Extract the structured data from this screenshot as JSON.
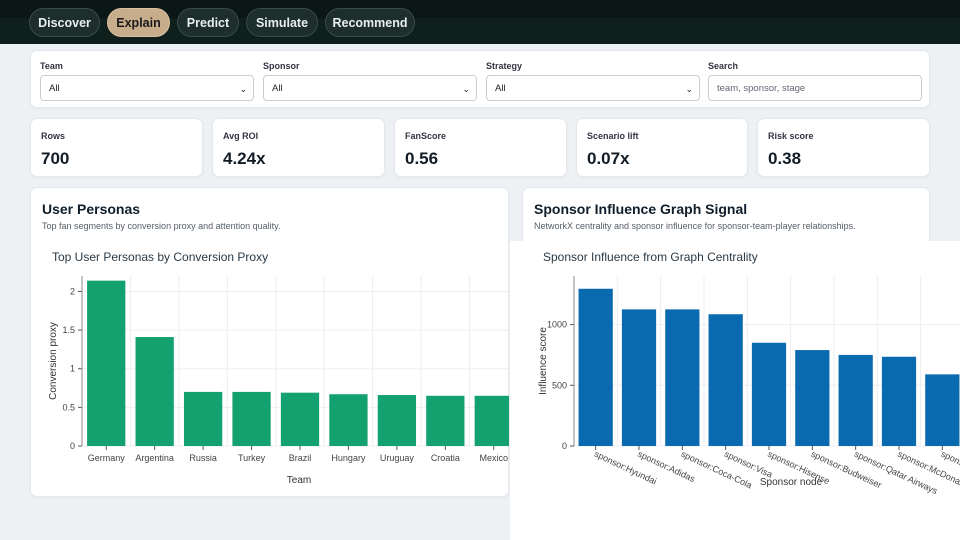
{
  "tabs": [
    "Discover",
    "Explain",
    "Predict",
    "Simulate",
    "Recommend"
  ],
  "active_tab": "Explain",
  "filters": {
    "team": {
      "label": "Team",
      "value": "All"
    },
    "sponsor": {
      "label": "Sponsor",
      "value": "All"
    },
    "strategy": {
      "label": "Strategy",
      "value": "All"
    },
    "search": {
      "label": "Search",
      "placeholder": "team, sponsor, stage"
    }
  },
  "kpis": [
    {
      "label": "Rows",
      "value": "700"
    },
    {
      "label": "Avg ROI",
      "value": "4.24x"
    },
    {
      "label": "FanScore",
      "value": "0.56"
    },
    {
      "label": "Scenario lift",
      "value": "0.07x"
    },
    {
      "label": "Risk score",
      "value": "0.38"
    }
  ],
  "panels": {
    "personas": {
      "title": "User Personas",
      "subtitle": "Top fan segments by conversion proxy and attention quality."
    },
    "influence": {
      "title": "Sponsor Influence Graph Signal",
      "subtitle": "NetworkX centrality and sponsor influence for sponsor-team-player relationships."
    }
  },
  "chart_data": [
    {
      "type": "bar",
      "title": "Top User Personas by Conversion Proxy",
      "xlabel": "Team",
      "ylabel": "Conversion proxy",
      "categories": [
        "Germany",
        "Argentina",
        "Russia",
        "Turkey",
        "Brazil",
        "Hungary",
        "Uruguay",
        "Croatia",
        "Mexico"
      ],
      "values": [
        2.14,
        1.41,
        0.7,
        0.7,
        0.69,
        0.67,
        0.66,
        0.65,
        0.65
      ],
      "ylim": [
        0,
        2.2
      ],
      "yticks": [
        "0",
        "0.5",
        "1",
        "1.5",
        "2"
      ],
      "color": "#13a26f",
      "grid": true
    },
    {
      "type": "bar",
      "title": "Sponsor Influence from Graph Centrality",
      "xlabel": "Sponsor node",
      "ylabel": "Influence score",
      "categories": [
        "sponsor:Hyundai",
        "sponsor:Adidas",
        "sponsor:Coca-Cola",
        "sponsor:Visa",
        "sponsor:Hisense",
        "sponsor:Budweiser",
        "sponsor:Qatar Airways",
        "sponsor:McDonald's",
        "sponsor:Wanda"
      ],
      "values": [
        1295,
        1125,
        1125,
        1085,
        850,
        790,
        750,
        735,
        590
      ],
      "ylim": [
        0,
        1400
      ],
      "yticks": [
        "0",
        "500",
        "1000"
      ],
      "color": "#0a6aaf",
      "grid": true
    }
  ]
}
